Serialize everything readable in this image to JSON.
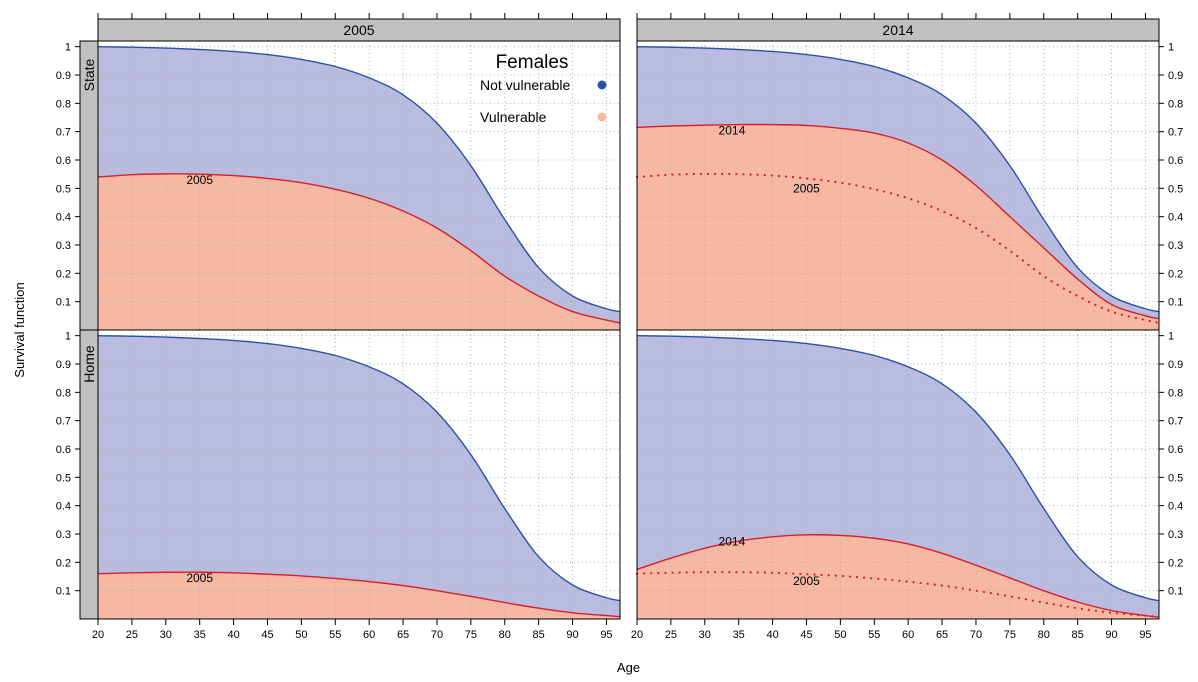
{
  "colors": {
    "not_vulnerable": "#2a52a8",
    "not_vulnerable_fill": "#b9bcdf",
    "vulnerable": "#d6202b",
    "vulnerable_fill": "#f6b8a2",
    "strip": "#c0c0c0",
    "grid": "#b0b0b0"
  },
  "chart_data": {
    "type": "area",
    "xlabel": "Age",
    "ylabel": "Survival function",
    "xlim": [
      20,
      97
    ],
    "ylim": [
      0,
      1.02
    ],
    "x_ticks": [
      20,
      25,
      30,
      35,
      40,
      45,
      50,
      55,
      60,
      65,
      70,
      75,
      80,
      85,
      90,
      95
    ],
    "y_ticks": [
      "0.1",
      "0.2",
      "0.3",
      "0.4",
      "0.5",
      "0.6",
      "0.7",
      "0.8",
      "0.9",
      "1"
    ],
    "columns": [
      "2005",
      "2014"
    ],
    "rows": [
      "State",
      "Home"
    ],
    "grid": true,
    "legend": {
      "title": "Females",
      "position": "top-right of 2005 panel",
      "items": [
        {
          "label": "Not vulnerable",
          "color_key": "not_vulnerable"
        },
        {
          "label": "Vulnerable",
          "color_key": "vulnerable_fill"
        }
      ]
    },
    "x": [
      20,
      25,
      30,
      35,
      40,
      45,
      50,
      55,
      60,
      65,
      70,
      75,
      80,
      85,
      90,
      95,
      97
    ],
    "not_vulnerable": [
      1.0,
      0.998,
      0.995,
      0.99,
      0.983,
      0.972,
      0.955,
      0.93,
      0.89,
      0.83,
      0.73,
      0.58,
      0.39,
      0.22,
      0.12,
      0.075,
      0.065
    ],
    "panels": [
      {
        "column": "2005",
        "row": "State",
        "vulnerable": [
          0.54,
          0.548,
          0.551,
          0.55,
          0.545,
          0.535,
          0.52,
          0.497,
          0.465,
          0.42,
          0.36,
          0.28,
          0.19,
          0.12,
          0.065,
          0.035,
          0.025
        ],
        "labels": [
          {
            "text": "2005",
            "x": 35,
            "y": 0.515
          }
        ]
      },
      {
        "column": "2014",
        "row": "State",
        "vulnerable": [
          0.715,
          0.72,
          0.723,
          0.725,
          0.725,
          0.722,
          0.712,
          0.695,
          0.66,
          0.6,
          0.51,
          0.4,
          0.29,
          0.18,
          0.09,
          0.05,
          0.04
        ],
        "reference_2005": [
          0.54,
          0.548,
          0.551,
          0.55,
          0.545,
          0.535,
          0.52,
          0.497,
          0.465,
          0.42,
          0.36,
          0.28,
          0.19,
          0.12,
          0.065,
          0.035,
          0.025
        ],
        "labels": [
          {
            "text": "2014",
            "x": 34,
            "y": 0.69
          },
          {
            "text": "2005",
            "x": 45,
            "y": 0.485
          }
        ]
      },
      {
        "column": "2005",
        "row": "Home",
        "vulnerable": [
          0.16,
          0.163,
          0.165,
          0.165,
          0.163,
          0.158,
          0.152,
          0.143,
          0.132,
          0.118,
          0.1,
          0.08,
          0.058,
          0.038,
          0.022,
          0.012,
          0.008
        ],
        "labels": [
          {
            "text": "2005",
            "x": 35,
            "y": 0.13
          }
        ]
      },
      {
        "column": "2014",
        "row": "Home",
        "vulnerable": [
          0.175,
          0.215,
          0.25,
          0.275,
          0.29,
          0.297,
          0.295,
          0.285,
          0.265,
          0.232,
          0.19,
          0.145,
          0.1,
          0.06,
          0.03,
          0.012,
          0.006
        ],
        "reference_2005": [
          0.16,
          0.163,
          0.165,
          0.165,
          0.163,
          0.158,
          0.152,
          0.143,
          0.132,
          0.118,
          0.1,
          0.08,
          0.058,
          0.038,
          0.022,
          0.012,
          0.008
        ],
        "labels": [
          {
            "text": "2014",
            "x": 34,
            "y": 0.26
          },
          {
            "text": "2005",
            "x": 45,
            "y": 0.12
          }
        ]
      }
    ]
  }
}
